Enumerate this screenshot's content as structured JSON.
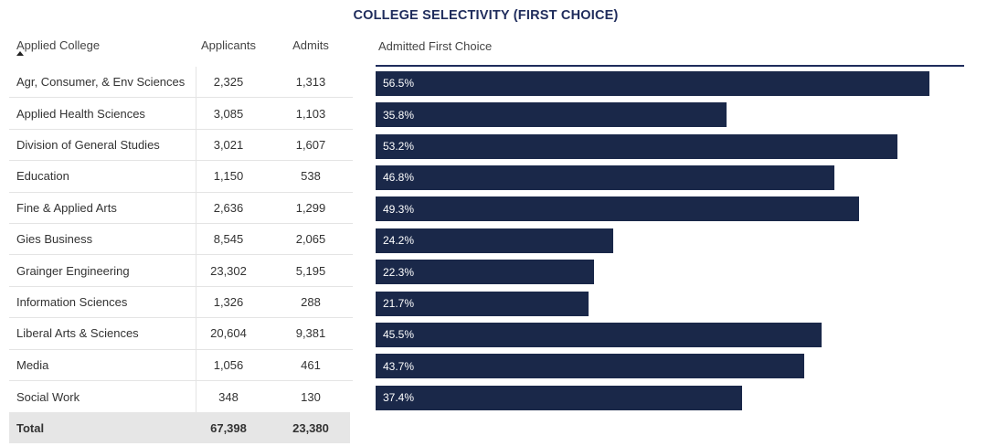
{
  "chart_data": {
    "type": "bar",
    "orientation": "horizontal",
    "title": "COLLEGE SELECTIVITY (FIRST CHOICE)",
    "columns": {
      "college": "Applied College",
      "applicants": "Applicants",
      "admits": "Admits",
      "percent": "Admitted First Choice"
    },
    "sort": "ascending",
    "xlim": [
      0,
      60
    ],
    "rows": [
      {
        "college": "Agr, Consumer, & Env Sciences",
        "applicants": "2,325",
        "admits": "1,313",
        "percent": 56.5,
        "percent_label": "56.5%"
      },
      {
        "college": "Applied Health Sciences",
        "applicants": "3,085",
        "admits": "1,103",
        "percent": 35.8,
        "percent_label": "35.8%"
      },
      {
        "college": "Division of General Studies",
        "applicants": "3,021",
        "admits": "1,607",
        "percent": 53.2,
        "percent_label": "53.2%"
      },
      {
        "college": "Education",
        "applicants": "1,150",
        "admits": "538",
        "percent": 46.8,
        "percent_label": "46.8%"
      },
      {
        "college": "Fine & Applied Arts",
        "applicants": "2,636",
        "admits": "1,299",
        "percent": 49.3,
        "percent_label": "49.3%"
      },
      {
        "college": "Gies Business",
        "applicants": "8,545",
        "admits": "2,065",
        "percent": 24.2,
        "percent_label": "24.2%"
      },
      {
        "college": "Grainger Engineering",
        "applicants": "23,302",
        "admits": "5,195",
        "percent": 22.3,
        "percent_label": "22.3%"
      },
      {
        "college": "Information Sciences",
        "applicants": "1,326",
        "admits": "288",
        "percent": 21.7,
        "percent_label": "21.7%"
      },
      {
        "college": "Liberal Arts & Sciences",
        "applicants": "20,604",
        "admits": "9,381",
        "percent": 45.5,
        "percent_label": "45.5%"
      },
      {
        "college": "Media",
        "applicants": "1,056",
        "admits": "461",
        "percent": 43.7,
        "percent_label": "43.7%"
      },
      {
        "college": "Social Work",
        "applicants": "348",
        "admits": "130",
        "percent": 37.4,
        "percent_label": "37.4%"
      }
    ],
    "total": {
      "label": "Total",
      "applicants": "67,398",
      "admits": "23,380"
    },
    "colors": {
      "bar": "#1a2849",
      "title": "#1f2c5c",
      "total_bg": "#e6e6e6"
    }
  }
}
